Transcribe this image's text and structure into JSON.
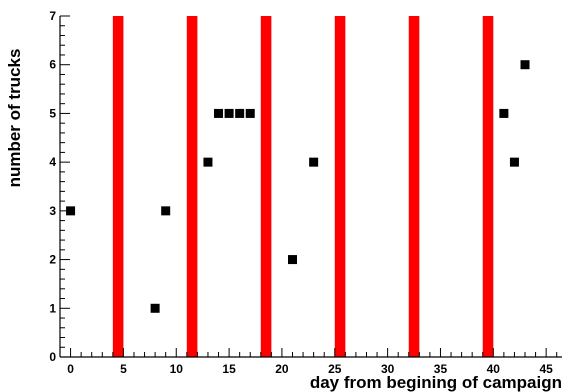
{
  "chart_data": {
    "type": "scatter",
    "title": "",
    "xlabel": "day from begining of campaign",
    "ylabel": "number of trucks",
    "xlim": [
      -1,
      46.5
    ],
    "ylim": [
      0,
      7
    ],
    "xticks": [
      0,
      5,
      10,
      15,
      20,
      25,
      30,
      35,
      40,
      45
    ],
    "yticks": [
      0,
      1,
      2,
      3,
      4,
      5,
      6,
      7
    ],
    "grid": false,
    "legend": "none",
    "marker_color": "#000000",
    "band_color": "#ff0000",
    "highlight_bands": [
      {
        "from": 4,
        "to": 5
      },
      {
        "from": 11,
        "to": 12
      },
      {
        "from": 18,
        "to": 19
      },
      {
        "from": 25,
        "to": 26
      },
      {
        "from": 32,
        "to": 33
      },
      {
        "from": 39,
        "to": 40
      }
    ],
    "points": [
      {
        "x": 0,
        "y": 3
      },
      {
        "x": 8,
        "y": 1
      },
      {
        "x": 9,
        "y": 3
      },
      {
        "x": 13,
        "y": 4
      },
      {
        "x": 14,
        "y": 5
      },
      {
        "x": 15,
        "y": 5
      },
      {
        "x": 16,
        "y": 5
      },
      {
        "x": 17,
        "y": 5
      },
      {
        "x": 21,
        "y": 2
      },
      {
        "x": 23,
        "y": 4
      },
      {
        "x": 41,
        "y": 5
      },
      {
        "x": 42,
        "y": 4
      },
      {
        "x": 43,
        "y": 6
      }
    ]
  }
}
